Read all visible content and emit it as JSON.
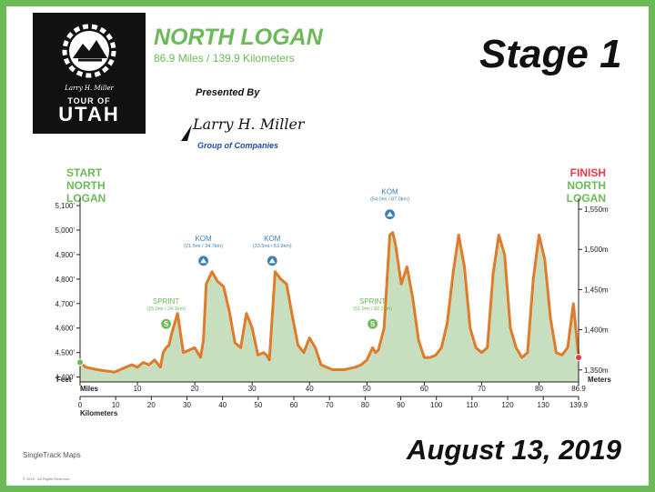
{
  "header": {
    "route_title": "NORTH LOGAN",
    "route_distance": "86.9 Miles / 139.9 Kilometers",
    "stage_word": "Stage",
    "stage_number": "1",
    "presented_by": "Presented By",
    "date": "August 13, 2019"
  },
  "logo": {
    "signature": "Larry H. Miller",
    "tour_of": "TOUR OF",
    "utah": "UTAH"
  },
  "sponsor": {
    "signature": "Larry H. Miller",
    "group": "Group of Companies"
  },
  "start": {
    "line1": "START",
    "line2": "NORTH",
    "line3": "LOGAN"
  },
  "finish": {
    "line1": "FINISH",
    "line2": "NORTH",
    "line3": "LOGAN"
  },
  "footer": {
    "map_credit": "SingleTrack Maps",
    "copyright": "© 2019 · All Rights Reserved"
  },
  "colors": {
    "border": "#6bba57",
    "profile_stroke": "#e07b2c",
    "profile_fill": "#c8dfbf",
    "marker_fill": "#6bba57",
    "kom_fill": "#3d7fb5",
    "finish_red": "#e23a4b"
  },
  "chart_data": {
    "type": "area",
    "title": "",
    "left_axis_label": "Feet",
    "right_axis_label": "Meters",
    "miles_axis_label": "Miles",
    "km_axis_label": "Kilometers",
    "ylim_feet": [
      4380,
      5130
    ],
    "xlim_miles": [
      0,
      86.9
    ],
    "grid": false,
    "y_ticks_feet": [
      "5,100'",
      "5,000'",
      "4,900'",
      "4,800'",
      "4,700'",
      "4,600'",
      "4,500'",
      "4,400'"
    ],
    "y_tick_values_feet": [
      5100,
      5000,
      4900,
      4800,
      4700,
      4600,
      4500,
      4400
    ],
    "y_ticks_meters": [
      "1,550m",
      "1,500m",
      "1,450m",
      "1,400m",
      "1,350m"
    ],
    "y_tick_values_meters": [
      1550,
      1500,
      1450,
      1400,
      1350
    ],
    "x_ticks_miles": [
      "0",
      "10",
      "20",
      "30",
      "40",
      "50",
      "60",
      "70",
      "80",
      "86.9"
    ],
    "x_tick_values_miles": [
      0,
      10,
      20,
      30,
      40,
      50,
      60,
      70,
      80,
      86.9
    ],
    "x_ticks_km": [
      "0",
      "10",
      "20",
      "30",
      "40",
      "50",
      "60",
      "70",
      "80",
      "90",
      "100",
      "110",
      "120",
      "130",
      "139.9"
    ],
    "x_tick_values_km": [
      0,
      10,
      20,
      30,
      40,
      50,
      60,
      70,
      80,
      90,
      100,
      110,
      120,
      130,
      139.9
    ],
    "profile": {
      "miles": [
        0,
        1,
        3,
        6,
        8,
        9,
        10,
        11,
        12,
        13,
        14,
        14.5,
        15,
        15.5,
        16,
        17,
        18,
        19,
        20,
        20.5,
        21,
        21.5,
        22,
        23,
        24,
        25,
        26,
        27,
        28,
        29,
        30,
        31,
        32,
        32.5,
        33,
        33.5,
        34,
        35,
        36,
        37,
        38,
        39,
        40,
        41,
        42,
        44,
        46,
        48,
        49,
        50,
        51,
        51.5,
        52,
        53,
        54,
        54.5,
        55,
        56,
        57,
        58,
        59,
        60,
        61,
        62,
        63,
        64,
        65,
        66,
        67,
        68,
        69,
        70,
        71,
        72,
        73,
        74,
        75,
        76,
        77,
        78,
        79,
        80,
        81,
        82,
        83,
        84,
        85,
        86,
        86.9
      ],
      "feet": [
        4460,
        4440,
        4430,
        4420,
        4440,
        4450,
        4440,
        4460,
        4450,
        4470,
        4440,
        4500,
        4520,
        4530,
        4580,
        4660,
        4500,
        4510,
        4520,
        4500,
        4480,
        4550,
        4780,
        4830,
        4790,
        4770,
        4670,
        4540,
        4520,
        4660,
        4600,
        4490,
        4500,
        4490,
        4470,
        4650,
        4830,
        4800,
        4780,
        4650,
        4530,
        4500,
        4560,
        4520,
        4450,
        4430,
        4430,
        4440,
        4450,
        4470,
        4520,
        4500,
        4510,
        4600,
        4980,
        4990,
        4940,
        4780,
        4850,
        4720,
        4550,
        4480,
        4480,
        4490,
        4520,
        4620,
        4820,
        4980,
        4850,
        4600,
        4520,
        4500,
        4520,
        4820,
        4980,
        4900,
        4600,
        4520,
        4480,
        4500,
        4800,
        4980,
        4880,
        4640,
        4500,
        4490,
        4520,
        4700,
        4480
      ]
    },
    "markers": [
      {
        "type": "sprint",
        "label": "SPRINT",
        "detail": "(15.0mi / 24.1km)",
        "mile": 15.0,
        "feet": 4580
      },
      {
        "type": "kom",
        "label": "KOM",
        "detail": "(21.5mi / 34.7km)",
        "mile": 21.5,
        "feet": 4830
      },
      {
        "type": "kom",
        "label": "KOM",
        "detail": "(33.5mi / 53.9km)",
        "mile": 33.5,
        "feet": 4830
      },
      {
        "type": "sprint",
        "label": "SPRINT",
        "detail": "(51.0mi / 82.2km)",
        "mile": 51.0,
        "feet": 4580
      },
      {
        "type": "kom",
        "label": "KOM",
        "detail": "(54.0mi / 87.0km)",
        "mile": 54.0,
        "feet": 5020
      }
    ],
    "endpoints": [
      {
        "name": "start",
        "mile": 0,
        "feet": 4460
      },
      {
        "name": "finish",
        "mile": 86.9,
        "feet": 4480
      }
    ]
  }
}
